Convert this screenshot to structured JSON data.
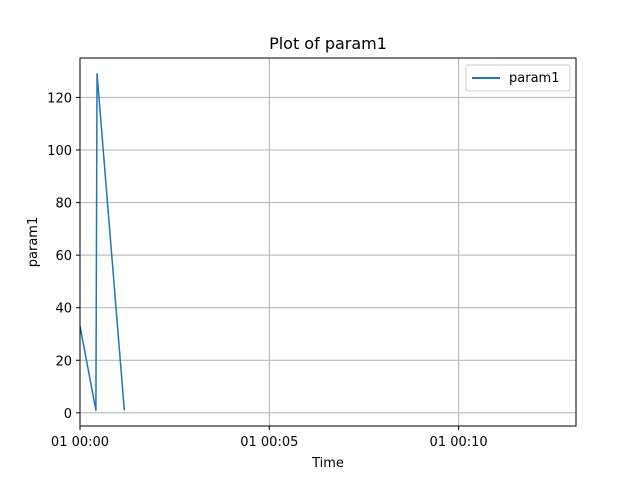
{
  "chart_data": {
    "type": "line",
    "title": "Plot of param1",
    "xlabel": "Time",
    "ylabel": "param1",
    "x_tick_labels": [
      "01 00:00",
      "01 00:05",
      "01 00:10"
    ],
    "x_ticks_minutes": [
      0,
      5,
      10
    ],
    "xlim_minutes": [
      0,
      13.1
    ],
    "y_ticks": [
      0,
      20,
      40,
      60,
      80,
      100,
      120
    ],
    "ylim": [
      -5,
      135
    ],
    "grid": true,
    "legend_position": "top-right",
    "series": [
      {
        "name": "param1",
        "color": "#1f77b4",
        "x_minutes": [
          0.0,
          0.42,
          0.45,
          1.17
        ],
        "values": [
          33,
          1,
          129,
          1
        ]
      }
    ]
  }
}
